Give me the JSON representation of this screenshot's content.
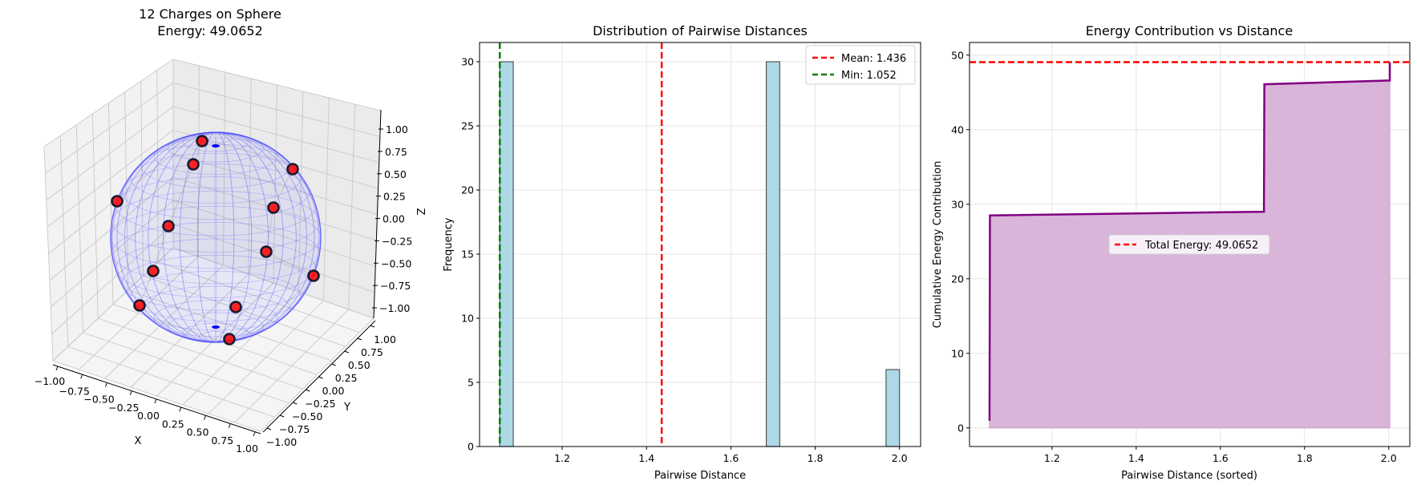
{
  "chart_data": [
    {
      "type": "scatter3d",
      "title": "12 Charges on Sphere",
      "subtitle": "Energy: 49.0652",
      "xlabel": "X",
      "ylabel": "Y",
      "zlabel": "Z",
      "xlim": [
        -1,
        1
      ],
      "ylim": [
        -1,
        1
      ],
      "zlim": [
        -1,
        1
      ],
      "x_ticks": [
        "−1.00",
        "−0.75",
        "−0.50",
        "−0.25",
        "0.00",
        "0.25",
        "0.50",
        "0.75",
        "1.00"
      ],
      "y_ticks": [
        "−1.00",
        "−0.75",
        "−0.50",
        "−0.25",
        "0.00",
        "0.25",
        "0.50",
        "0.75",
        "1.00"
      ],
      "z_ticks": [
        "−1.00",
        "−0.75",
        "−0.50",
        "−0.25",
        "0.00",
        "0.25",
        "0.50",
        "0.75",
        "1.00"
      ],
      "n_points": 12,
      "sphere_color": "#0000ff",
      "point_color": "#ff0000",
      "point_edge_color": "#1a1a2e"
    },
    {
      "type": "bar",
      "title": "Distribution of Pairwise Distances",
      "xlabel": "Pairwise Distance",
      "ylabel": "Frequency",
      "xlim": [
        1.004,
        2.05
      ],
      "ylim": [
        0,
        31.5
      ],
      "x_ticks": [
        "1.2",
        "1.4",
        "1.6",
        "1.8",
        "2.0"
      ],
      "x_tick_values": [
        1.2,
        1.4,
        1.6,
        1.8,
        2.0
      ],
      "y_ticks": [
        "0",
        "5",
        "10",
        "15",
        "20",
        "25",
        "30"
      ],
      "y_tick_values": [
        0,
        5,
        10,
        15,
        20,
        25,
        30
      ],
      "bins": [
        {
          "x0": 1.052,
          "x1": 1.084,
          "count": 30
        },
        {
          "x0": 1.684,
          "x1": 1.716,
          "count": 30
        },
        {
          "x0": 1.968,
          "x1": 2.0,
          "count": 6
        }
      ],
      "bar_color": "#add8e6",
      "grid": true,
      "vlines": [
        {
          "label": "Mean: 1.436",
          "value": 1.436,
          "color": "#ff0000"
        },
        {
          "label": "Min: 1.052",
          "value": 1.052,
          "color": "#008000"
        }
      ],
      "legend": "top-right"
    },
    {
      "type": "area",
      "title": "Energy Contribution vs Distance",
      "xlabel": "Pairwise Distance (sorted)",
      "ylabel": "Cumulative Energy Contribution",
      "xlim": [
        1.004,
        2.05
      ],
      "ylim": [
        -2.5,
        51.7
      ],
      "x_ticks": [
        "1.2",
        "1.4",
        "1.6",
        "1.8",
        "2.0"
      ],
      "x_tick_values": [
        1.2,
        1.4,
        1.6,
        1.8,
        2.0
      ],
      "y_ticks": [
        "0",
        "10",
        "20",
        "30",
        "40",
        "50"
      ],
      "y_tick_values": [
        0,
        10,
        20,
        30,
        40,
        50
      ],
      "points": [
        [
          1.0515,
          0.95
        ],
        [
          1.0525,
          28.5
        ],
        [
          1.7035,
          29.0
        ],
        [
          1.7045,
          46.1
        ],
        [
          2.0025,
          46.6
        ],
        [
          2.0025,
          49.0652
        ]
      ],
      "line_color": "#800080",
      "fill_color": "#d8b1d8",
      "grid": true,
      "hline": {
        "label": "Total Energy: 49.0652",
        "value": 49.0652,
        "color": "#ff0000"
      },
      "legend": "center"
    }
  ]
}
